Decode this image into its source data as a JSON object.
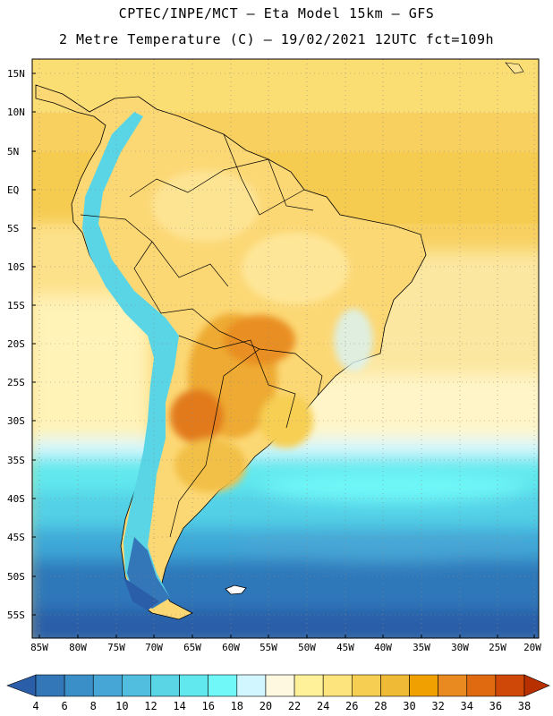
{
  "title_line1": "CPTEC/INPE/MCT –  Eta Model 15km – GFS",
  "title_line2": "2 Metre Temperature (C) – 19/02/2021 12UTC fct=109h",
  "lat_labels": [
    "15N",
    "10N",
    "5N",
    "EQ",
    "5S",
    "10S",
    "15S",
    "20S",
    "25S",
    "30S",
    "35S",
    "40S",
    "45S",
    "50S",
    "55S"
  ],
  "lon_labels": [
    "85W",
    "80W",
    "75W",
    "70W",
    "65W",
    "60W",
    "55W",
    "50W",
    "45W",
    "40W",
    "35W",
    "30W",
    "25W",
    "20W"
  ],
  "colorbar": {
    "levels": [
      "4",
      "6",
      "8",
      "10",
      "12",
      "14",
      "16",
      "18",
      "20",
      "22",
      "24",
      "26",
      "28",
      "30",
      "32",
      "34",
      "36",
      "38"
    ],
    "colors": [
      "#2a5ea8",
      "#3377b8",
      "#3b8fc8",
      "#46a6d6",
      "#52bedf",
      "#5ad5e6",
      "#60e8ee",
      "#70f8f8",
      "#d2f6ff",
      "#fff8e0",
      "#fff09a",
      "#fde47c",
      "#f6cf52",
      "#efbb36",
      "#f0a000",
      "#e88a20",
      "#e06a10",
      "#d04808",
      "#b83000"
    ]
  }
}
